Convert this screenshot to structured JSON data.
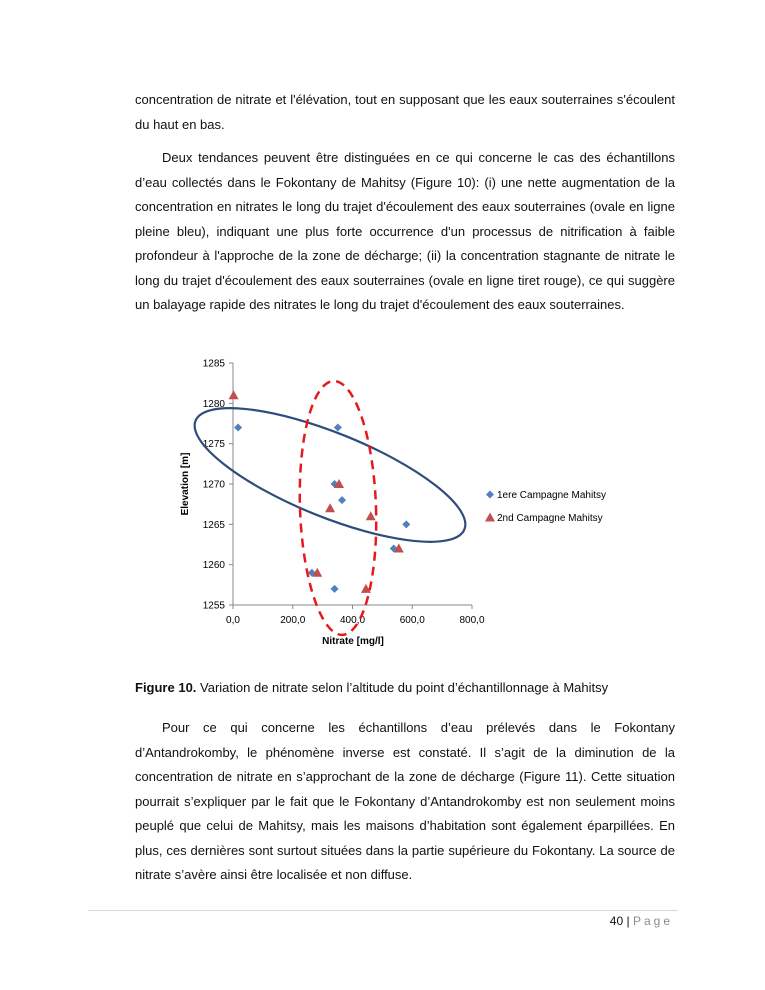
{
  "paragraphs": [
    "concentration de nitrate et l'élévation, tout en supposant que les eaux souterraines s'écoulent du haut en bas.",
    "Deux tendances peuvent être distinguées en ce qui concerne le cas des échantillons d’eau collectés dans le Fokontany de Mahitsy (Figure 10): (i) une nette augmentation de la concentration en nitrates le long du trajet d'écoulement des eaux souterraines (ovale en ligne pleine bleu), indiquant une plus forte occurrence d'un processus de nitrification à faible profondeur à l'approche de la zone de décharge; (ii) la concentration stagnante de nitrate le long du trajet d'écoulement des eaux souterraines (ovale en ligne tiret rouge), ce qui suggère un balayage rapide des nitrates le long du trajet d'écoulement des eaux souterraines.",
    "Pour ce qui concerne les échantillons d’eau prélevés dans le Fokontany d’Antandrokomby, le phénomène inverse est constaté. Il s’agit de la diminution de la concentration de nitrate en s’approchant de la zone de décharge (Figure 11). Cette situation pourrait s’expliquer par le fait que le Fokontany d’Antandrokomby est non seulement moins peuplé que celui de Mahitsy, mais les maisons d’habitation sont également éparpillées. En plus, ces dernières sont surtout situées dans la partie supérieure du Fokontany. La source de nitrate s’avère ainsi être localisée et non diffuse."
  ],
  "caption": {
    "label": "Figure 10.",
    "text": " Variation de nitrate selon l’altitude du point d’échantillonnage à Mahitsy"
  },
  "footer": {
    "page_number": "40",
    "separator": "|",
    "page_word": "Page"
  },
  "chart_data": {
    "type": "scatter",
    "xlabel": "Nitrate [mg/l]",
    "ylabel": "Elevation [m]",
    "xlim": [
      0,
      800
    ],
    "ylim": [
      1255,
      1285
    ],
    "xticks": [
      "0,0",
      "200,0",
      "400,0",
      "600,0",
      "800,0"
    ],
    "xtick_values": [
      0,
      200,
      400,
      600,
      800
    ],
    "yticks": [
      "1255",
      "1260",
      "1265",
      "1270",
      "1275",
      "1280",
      "1285"
    ],
    "ytick_values": [
      1255,
      1260,
      1265,
      1270,
      1275,
      1280,
      1285
    ],
    "grid": false,
    "legend_placement": "right",
    "series": [
      {
        "name": "1ere Campagne Mahitsy",
        "marker": "diamond",
        "color": "#4f81bd",
        "points": [
          [
            17,
            1277
          ],
          [
            351,
            1277
          ],
          [
            340,
            1270
          ],
          [
            365,
            1268
          ],
          [
            580,
            1265
          ],
          [
            538,
            1262
          ],
          [
            264,
            1259
          ],
          [
            340,
            1257
          ]
        ]
      },
      {
        "name": "2nd Campagne Mahitsy",
        "marker": "triangle",
        "color": "#c0504d",
        "points": [
          [
            2,
            1281
          ],
          [
            355,
            1270
          ],
          [
            325,
            1267
          ],
          [
            461,
            1266
          ],
          [
            555,
            1262
          ],
          [
            282,
            1259
          ],
          [
            445,
            1257
          ]
        ]
      }
    ],
    "annotations": [
      {
        "shape": "ellipse",
        "style": "solid",
        "color": "#2e4d7b"
      },
      {
        "shape": "ellipse",
        "style": "dashed",
        "color": "#e41a1c"
      }
    ]
  }
}
